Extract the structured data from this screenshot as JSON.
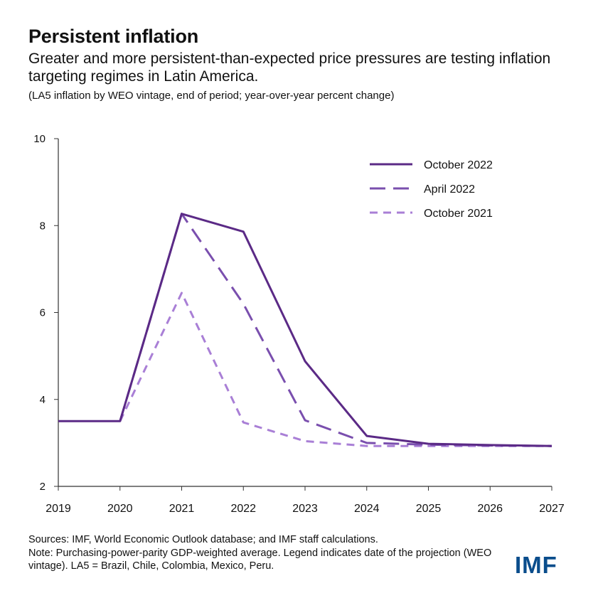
{
  "header": {
    "title": "Persistent inflation",
    "subtitle": "Greater and more persistent-than-expected price pressures are testing inflation targeting regimes in Latin America.",
    "note": "(LA5 inflation by WEO vintage, end of period; year-over-year percent change)"
  },
  "chart_data": {
    "type": "line",
    "title": "",
    "xlabel": "",
    "ylabel": "",
    "categories": [
      "2019",
      "2020",
      "2021",
      "2022",
      "2023",
      "2024",
      "2025",
      "2026",
      "2027"
    ],
    "ylim": [
      2,
      10
    ],
    "yticks": [
      2,
      4,
      6,
      8,
      10
    ],
    "grid": false,
    "legend_position": "top-right",
    "series": [
      {
        "name": "October 2022",
        "color": "#5b2a86",
        "style": "solid",
        "values": [
          3.5,
          3.5,
          8.27,
          7.86,
          4.88,
          3.16,
          2.98,
          2.95,
          2.93
        ]
      },
      {
        "name": "April 2022",
        "color": "#7a4fae",
        "style": "long-dash",
        "values": [
          null,
          3.5,
          8.27,
          6.2,
          3.52,
          3.0,
          2.96,
          2.94,
          2.93
        ]
      },
      {
        "name": "October 2021",
        "color": "#a97fd6",
        "style": "short-dash",
        "values": [
          null,
          3.5,
          6.45,
          3.47,
          3.04,
          2.93,
          2.93,
          2.93,
          2.93
        ]
      }
    ]
  },
  "footer": {
    "sources": "Sources: IMF, World Economic Outlook database; and IMF staff calculations.",
    "note": "Note: Purchasing-power-parity GDP-weighted average. Legend indicates date of the projection (WEO vintage). LA5 = Brazil, Chile, Colombia, Mexico, Peru."
  },
  "logo_text": "IMF"
}
